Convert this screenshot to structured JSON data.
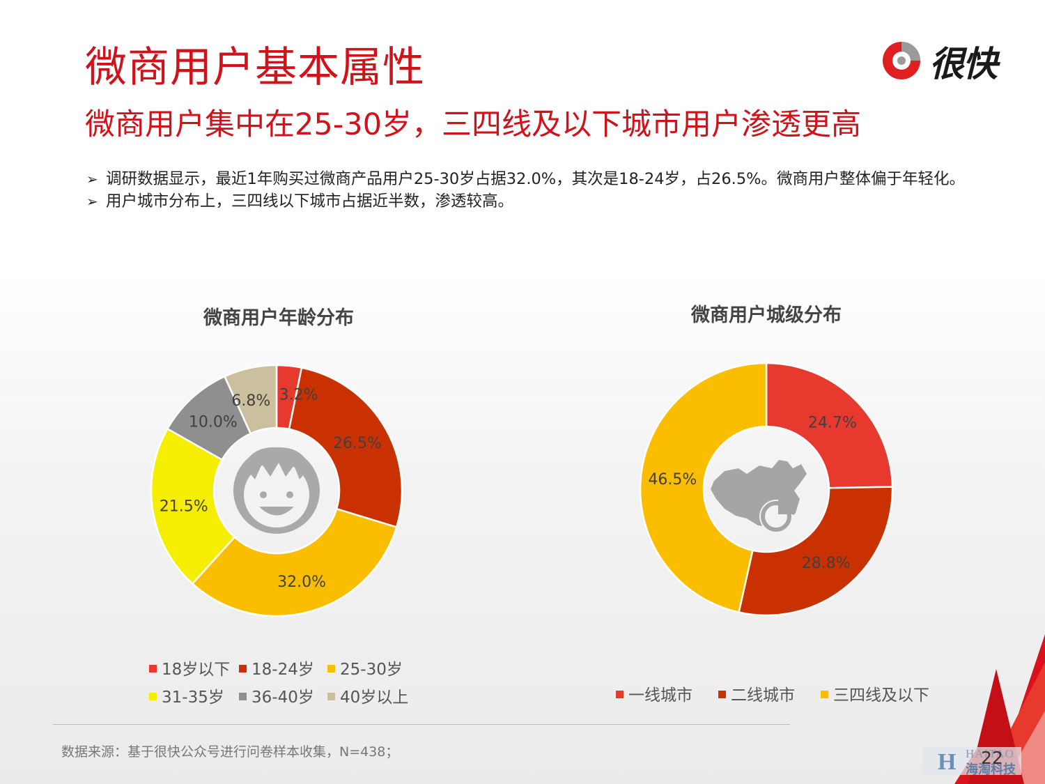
{
  "header": {
    "title": "微商用户基本属性",
    "subtitle": "微商用户集中在25-30岁，三四线及以下城市用户渗透更高",
    "logo_text": "很快"
  },
  "bullets": [
    "调研数据显示，最近1年购买过微商产品用户25-30岁占据32.0%，其次是18-24岁，占26.5%。微商用户整体偏于年轻化。",
    "用户城市分布上，三四线以下城市占据近半数，渗透较高。"
  ],
  "bullet_marker": "➢",
  "chart_data": [
    {
      "type": "pie",
      "title": "微商用户年龄分布",
      "donut": true,
      "center_icon": "smiley-face-icon",
      "categories": [
        "18岁以下",
        "18-24岁",
        "25-30岁",
        "31-35岁",
        "36-40岁",
        "40岁以上"
      ],
      "values": [
        3.2,
        26.5,
        32.0,
        21.5,
        10.0,
        6.8
      ],
      "labels": [
        "3.2%",
        "26.5%",
        "32.0%",
        "21.5%",
        "10.0%",
        "6.8%"
      ],
      "colors": [
        "#e8392f",
        "#c93200",
        "#fbbd00",
        "#f5ee00",
        "#8f8f8f",
        "#cbbf9e"
      ],
      "legend_position": "bottom"
    },
    {
      "type": "pie",
      "title": "微商用户城级分布",
      "donut": true,
      "center_icon": "china-map-pie-icon",
      "categories": [
        "一线城市",
        "二线城市",
        "三四线及以下"
      ],
      "values": [
        24.7,
        28.8,
        46.5
      ],
      "labels": [
        "24.7%",
        "28.8%",
        "46.5%"
      ],
      "colors": [
        "#e8392f",
        "#c93200",
        "#fbbd00"
      ],
      "legend_position": "bottom"
    }
  ],
  "footer": {
    "source": "数据来源：基于很快公众号进行问卷样本收集，N=438；",
    "page_number": "22",
    "watermark_en": "HAITAO",
    "watermark_cn": "海淘科技",
    "watermark_letter": "H"
  }
}
